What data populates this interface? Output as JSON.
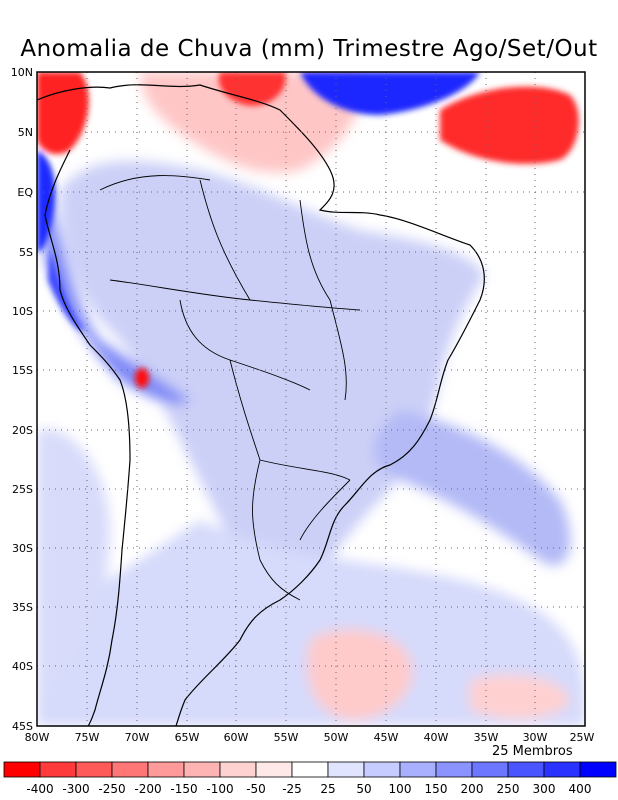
{
  "title": "Anomalia de Chuva (mm) Trimestre Ago/Set/Out",
  "members_label": "25 Membros",
  "lat_labels": [
    "10N",
    "5N",
    "EQ",
    "5S",
    "10S",
    "15S",
    "20S",
    "25S",
    "30S",
    "35S",
    "40S",
    "45S"
  ],
  "lon_labels": [
    "80W",
    "75W",
    "70W",
    "65W",
    "60W",
    "55W",
    "50W",
    "45W",
    "40W",
    "35W",
    "30W",
    "25W"
  ],
  "legend": {
    "labels": [
      "-400",
      "-300",
      "-250",
      "-200",
      "-150",
      "-100",
      "-50",
      "-25",
      "25",
      "50",
      "100",
      "150",
      "200",
      "250",
      "300",
      "400"
    ],
    "colors": [
      "#ff0000",
      "#ff3a3a",
      "#ff5a5a",
      "#ff7676",
      "#ff9a9a",
      "#ffb4b4",
      "#ffd2d2",
      "#ffe8e8",
      "#ffffff",
      "#e0e4ff",
      "#c6ccff",
      "#a9b1ff",
      "#8a93ff",
      "#6c76ff",
      "#4b55ff",
      "#2a32ff",
      "#0000ff"
    ]
  },
  "colors": {
    "land_blue": "#c9cdf5",
    "ocean_blue": "#d8dcfa",
    "strong_blue": "#2a32ff",
    "strong_red": "#ff2020",
    "light_red": "#ffc2c2"
  }
}
